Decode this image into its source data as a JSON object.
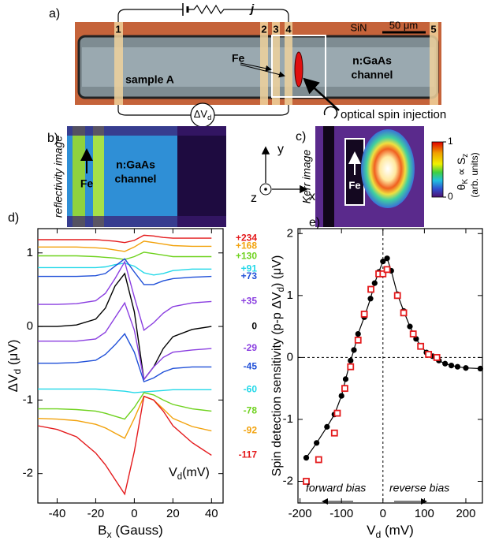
{
  "panel_a": {
    "label": "a)",
    "contacts": [
      "1",
      "2",
      "3",
      "4",
      "5"
    ],
    "current": "j",
    "substrate": "SiN",
    "scale_bar": "50 μm",
    "ferromagnet": "Fe",
    "channel": [
      "n:GaAs",
      "channel"
    ],
    "sample": "sample A",
    "voltage": {
      "base": "ΔV",
      "sub": "d"
    },
    "excitation": "optical spin injection"
  },
  "panel_b": {
    "label": "b)",
    "caption": "reflectivity image",
    "ferromagnet": "Fe",
    "channel": [
      "n:GaAs",
      "channel"
    ]
  },
  "axes_key": {
    "y": "y",
    "z": "z",
    "x": "x"
  },
  "panel_c": {
    "label": "c)",
    "caption": "Kerr image",
    "ferromagnet": "Fe",
    "colorbar_ticks": [
      0,
      1
    ],
    "colorbar_title": {
      "base": "θ",
      "sub1": "K",
      "rel": " ∝ S",
      "sub2": "z"
    },
    "colorbar_units": "(arb. units)"
  },
  "chart_data": [
    {
      "type": "line",
      "label": "d)",
      "xlabel": {
        "base": "B",
        "sub": "x",
        "rest": " (Gauss)"
      },
      "ylabel": {
        "base": "ΔV",
        "sub": "d",
        "rest": " (μV)"
      },
      "annotation": {
        "base": "V",
        "sub": "d",
        "rest": "(mV)"
      },
      "x": [
        -50,
        -40,
        -30,
        -20,
        -15,
        -10,
        -5,
        0,
        5,
        10,
        15,
        20,
        30,
        40
      ],
      "xlim": [
        -50,
        46
      ],
      "xticks": [
        -40,
        -20,
        0,
        20,
        40
      ],
      "ylim": [
        -2.4,
        1.33
      ],
      "yticks": [
        -2,
        -1,
        0,
        1
      ],
      "series": [
        {
          "name": "+234",
          "color": "#e41a1c",
          "values": [
            1.18,
            1.18,
            1.18,
            1.18,
            1.17,
            1.16,
            1.14,
            1.17,
            1.24,
            1.23,
            1.21,
            1.2,
            1.2,
            1.2
          ]
        },
        {
          "name": "+168",
          "color": "#f2a20c",
          "values": [
            1.08,
            1.08,
            1.08,
            1.07,
            1.06,
            1.04,
            1.02,
            1.08,
            1.16,
            1.14,
            1.12,
            1.1,
            1.09,
            1.09
          ]
        },
        {
          "name": "+130",
          "color": "#6fd21e",
          "values": [
            0.96,
            0.96,
            0.96,
            0.95,
            0.94,
            0.93,
            0.91,
            0.95,
            1.01,
            0.99,
            0.97,
            0.95,
            0.95,
            0.95
          ]
        },
        {
          "name": "+91",
          "color": "#22d8e8",
          "values": [
            0.8,
            0.8,
            0.8,
            0.8,
            0.81,
            0.84,
            0.86,
            0.82,
            0.73,
            0.7,
            0.72,
            0.76,
            0.78,
            0.78
          ]
        },
        {
          "name": "+73",
          "color": "#1f4fd8",
          "values": [
            0.68,
            0.68,
            0.68,
            0.69,
            0.72,
            0.82,
            0.92,
            0.74,
            0.57,
            0.57,
            0.62,
            0.65,
            0.67,
            0.68
          ]
        },
        {
          "name": "+35",
          "color": "#8a3ee0",
          "values": [
            0.3,
            0.3,
            0.31,
            0.35,
            0.45,
            0.65,
            0.88,
            0.4,
            -0.05,
            0.05,
            0.18,
            0.27,
            0.32,
            0.34
          ]
        },
        {
          "name": "0",
          "color": "#000000",
          "values": [
            0,
            0,
            0.02,
            0.1,
            0.25,
            0.55,
            0.72,
            0.2,
            -0.72,
            -0.55,
            -0.3,
            -0.14,
            -0.04,
            0
          ]
        },
        {
          "name": "-29",
          "color": "#8a3ee0",
          "values": [
            -0.2,
            -0.2,
            -0.2,
            -0.17,
            -0.08,
            0.12,
            0.32,
            -0.05,
            -0.72,
            -0.55,
            -0.42,
            -0.35,
            -0.32,
            -0.3
          ]
        },
        {
          "name": "-45",
          "color": "#1f4fd8",
          "values": [
            -0.5,
            -0.5,
            -0.49,
            -0.46,
            -0.38,
            -0.25,
            -0.1,
            -0.35,
            -0.75,
            -0.7,
            -0.62,
            -0.57,
            -0.55,
            -0.55
          ]
        },
        {
          "name": "-60",
          "color": "#22d8e8",
          "values": [
            -0.85,
            -0.85,
            -0.85,
            -0.85,
            -0.86,
            -0.87,
            -0.88,
            -0.9,
            -0.89,
            -0.88,
            -0.87,
            -0.86,
            -0.86,
            -0.86
          ]
        },
        {
          "name": "-78",
          "color": "#6fd21e",
          "values": [
            -1.12,
            -1.12,
            -1.13,
            -1.15,
            -1.18,
            -1.22,
            -1.26,
            -1.1,
            -0.9,
            -0.93,
            -1,
            -1.06,
            -1.12,
            -1.15
          ]
        },
        {
          "name": "-92",
          "color": "#f2a20c",
          "values": [
            -1.25,
            -1.26,
            -1.28,
            -1.33,
            -1.38,
            -1.45,
            -1.52,
            -1.25,
            -0.95,
            -1,
            -1.12,
            -1.25,
            -1.36,
            -1.42
          ]
        },
        {
          "name": "-117",
          "color": "#e41a1c",
          "values": [
            -1.35,
            -1.4,
            -1.5,
            -1.72,
            -1.88,
            -2.08,
            -2.28,
            -1.7,
            -0.95,
            -1,
            -1.15,
            -1.35,
            -1.58,
            -1.75
          ]
        }
      ]
    },
    {
      "type": "scatter",
      "label": "e)",
      "xlabel": {
        "base": "V",
        "sub": "d",
        "rest": " (mV)"
      },
      "ylabel": {
        "pre": "Spin detection sensitivity (p-p ΔV",
        "sub": "d",
        "rest": ") (μV)"
      },
      "annotations": [
        "forward bias",
        "reverse bias"
      ],
      "reference_lines": {
        "x": 0,
        "y": 0
      },
      "xlim": [
        -205,
        240
      ],
      "xticks": [
        -200,
        -100,
        0,
        100,
        200
      ],
      "ylim": [
        -2.35,
        2.08
      ],
      "yticks": [
        -2,
        -1,
        0,
        1,
        2
      ],
      "series": [
        {
          "color": "#000000",
          "marker": "circle",
          "connect": true,
          "x": [
            -185,
            -160,
            -135,
            -117,
            -100,
            -90,
            -78,
            -70,
            -60,
            -45,
            -30,
            -20,
            -10,
            0,
            10,
            20,
            35,
            50,
            65,
            80,
            92,
            105,
            120,
            135,
            150,
            165,
            180,
            200,
            235
          ],
          "values": [
            -1.62,
            -1.38,
            -1.12,
            -0.92,
            -0.62,
            -0.35,
            -0.05,
            0.12,
            0.38,
            0.65,
            0.95,
            1.2,
            1.38,
            1.55,
            1.6,
            1.4,
            1.02,
            0.75,
            0.5,
            0.3,
            0.18,
            0.08,
            0.02,
            -0.05,
            -0.1,
            -0.13,
            -0.15,
            -0.17,
            -0.18
          ]
        },
        {
          "color": "#e41a1c",
          "marker": "square",
          "connect": false,
          "x": [
            -185,
            -155,
            -117,
            -110,
            -92,
            -78,
            -60,
            -45,
            -29,
            -10,
            0,
            10,
            35,
            50,
            73,
            91,
            110,
            130
          ],
          "values": [
            -2,
            -1.65,
            -1.22,
            -0.9,
            -0.5,
            -0.15,
            0.28,
            0.7,
            1.1,
            1.35,
            1.35,
            1.42,
            1,
            0.72,
            0.38,
            0.18,
            0.05,
            0
          ]
        }
      ]
    }
  ]
}
